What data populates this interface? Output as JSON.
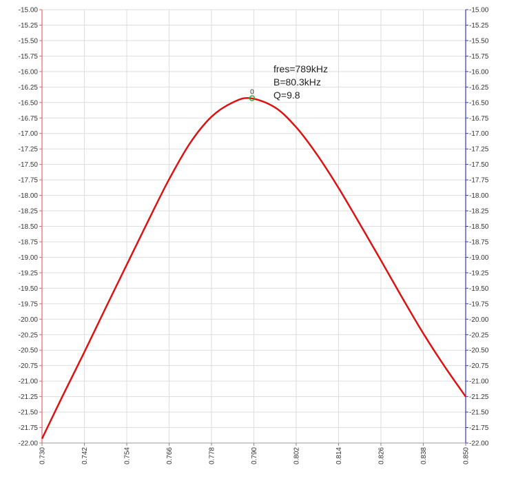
{
  "chart_data": {
    "type": "line",
    "title": "",
    "xlabel": "",
    "ylabel": "",
    "xlim": [
      0.73,
      0.85
    ],
    "ylim": [
      -22.0,
      -15.0
    ],
    "x_ticks": [
      "0.730",
      "0.742",
      "0.754",
      "0.766",
      "0.778",
      "0.790",
      "0.802",
      "0.814",
      "0.826",
      "0.838",
      "0.850"
    ],
    "y_ticks": [
      "-15.00",
      "-15.25",
      "-15.50",
      "-15.75",
      "-16.00",
      "-16.25",
      "-16.50",
      "-16.75",
      "-17.00",
      "-17.25",
      "-17.50",
      "-17.75",
      "-18.00",
      "-18.25",
      "-18.50",
      "-18.75",
      "-19.00",
      "-19.25",
      "-19.50",
      "-19.75",
      "-20.00",
      "-20.25",
      "-20.50",
      "-20.75",
      "-21.00",
      "-21.25",
      "-21.50",
      "-21.75",
      "-22.00"
    ],
    "y2_ticks": [
      "-15.00",
      "-15.25",
      "-15.50",
      "-15.75",
      "-16.00",
      "-16.25",
      "-16.50",
      "-16.75",
      "-17.00",
      "-17.25",
      "-17.50",
      "-17.75",
      "-18.00",
      "-18.25",
      "-18.50",
      "-18.75",
      "-19.00",
      "-19.25",
      "-19.50",
      "-19.75",
      "-20.00",
      "-20.25",
      "-20.50",
      "-20.75",
      "-21.00",
      "-21.25",
      "-21.50",
      "-21.75",
      "-22.00"
    ],
    "grid": true,
    "colors": {
      "series": "#dd1111",
      "left_axis": "#e06666",
      "right_axis": "#3333cc",
      "grid": "#dddddd",
      "marker": "#33aa33"
    },
    "series": [
      {
        "x": [
          0.73,
          0.736,
          0.742,
          0.748,
          0.754,
          0.76,
          0.766,
          0.772,
          0.778,
          0.784,
          0.789,
          0.796,
          0.802,
          0.808,
          0.814,
          0.82,
          0.826,
          0.832,
          0.838,
          0.844,
          0.85
        ],
        "values": [
          -21.93,
          -21.22,
          -20.53,
          -19.82,
          -19.12,
          -18.42,
          -17.74,
          -17.15,
          -16.73,
          -16.5,
          -16.43,
          -16.58,
          -16.9,
          -17.35,
          -17.88,
          -18.46,
          -19.05,
          -19.65,
          -20.23,
          -20.76,
          -21.25
        ]
      }
    ],
    "marker": {
      "x": 0.7895,
      "y": -16.43,
      "label": "0"
    },
    "annotations": [
      "fres=789kHz",
      "B=80.3kHz",
      "Q=9.8"
    ]
  }
}
